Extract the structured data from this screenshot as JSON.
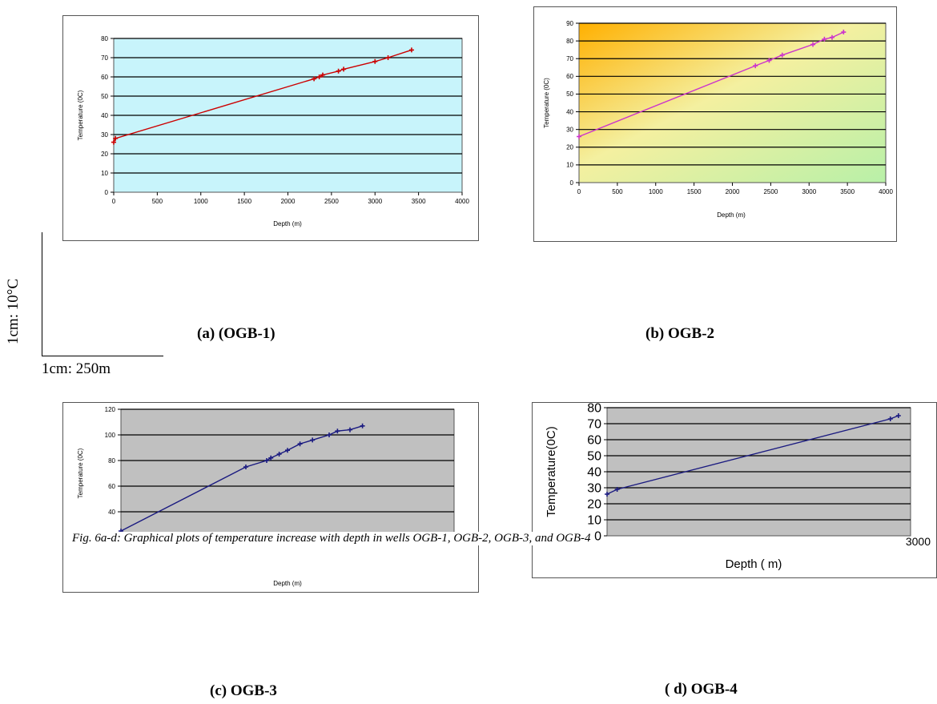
{
  "captions": {
    "a": "(a) (OGB-1)",
    "b": "(b)  OGB-2",
    "c": "(c)  OGB-3",
    "d": "( d)  OGB-4"
  },
  "scale_bar": {
    "horizontal": "1cm: 250m",
    "vertical": "1cm: 10°C"
  },
  "figure_caption": "Fig. 6a-d: Graphical plots of temperature increase with depth in wells OGB-1, OGB-2, OGB-3, and OGB-4",
  "colors": {
    "a_bg": "#c8f4fb",
    "a_line": "#cc0000",
    "b_line": "#cc33cc",
    "c_bg": "#c0c0c0",
    "c_line": "#1a1a80",
    "d_bg": "#c0c0c0",
    "d_line": "#1a1a80"
  },
  "chart_data": [
    {
      "type": "line",
      "xlabel": "Depth (m)",
      "ylabel": "Temperature (0C)",
      "xlim": [
        0,
        4000
      ],
      "ylim": [
        0,
        80
      ],
      "xticks": [
        "0",
        "500",
        "1000",
        "1500",
        "2000",
        "2500",
        "3000",
        "3500",
        "4000"
      ],
      "yticks": [
        "0",
        "10",
        "20",
        "30",
        "40",
        "50",
        "60",
        "70",
        "80"
      ],
      "grid": true,
      "x": [
        0,
        20,
        2300,
        2360,
        2400,
        2580,
        2640,
        3000,
        3150,
        3420
      ],
      "y": [
        26,
        28,
        59,
        60,
        61,
        63,
        64,
        68,
        70,
        74
      ]
    },
    {
      "type": "line",
      "xlabel": "Depth (m)",
      "ylabel": "Temperature (0C)",
      "xlim": [
        0,
        4000
      ],
      "ylim": [
        0,
        90
      ],
      "xticks": [
        "0",
        "500",
        "1000",
        "1500",
        "2000",
        "2500",
        "3000",
        "3500",
        "4000"
      ],
      "yticks": [
        "0",
        "10",
        "20",
        "30",
        "40",
        "50",
        "60",
        "70",
        "80",
        "90"
      ],
      "grid": true,
      "x": [
        0,
        2300,
        2480,
        2650,
        3050,
        3200,
        3300,
        3450
      ],
      "y": [
        26,
        66,
        69,
        72,
        78,
        81,
        82,
        85
      ]
    },
    {
      "type": "line",
      "xlabel": "Depth (m)",
      "ylabel": "Temperature (0C)",
      "xlim": [
        0,
        4000
      ],
      "ylim": [
        20,
        120
      ],
      "yticks": [
        "20",
        "40",
        "60",
        "80",
        "100",
        "120"
      ],
      "grid": true,
      "x": [
        0,
        1500,
        1750,
        1800,
        1900,
        2000,
        2150,
        2300,
        2500,
        2600,
        2750,
        2900
      ],
      "y": [
        25,
        75,
        80,
        82,
        85,
        88,
        93,
        96,
        100,
        103,
        104,
        107
      ]
    },
    {
      "type": "line",
      "xlabel": "Depth ( m)",
      "ylabel": "Temperature(0C)",
      "xlim": [
        0,
        3000
      ],
      "ylim": [
        0,
        80
      ],
      "xticks": [
        "3000"
      ],
      "yticks": [
        "0",
        "10",
        "20",
        "30",
        "40",
        "50",
        "60",
        "70",
        "80"
      ],
      "grid": true,
      "x": [
        0,
        100,
        2800,
        2880
      ],
      "y": [
        26,
        29,
        73,
        75
      ]
    }
  ]
}
